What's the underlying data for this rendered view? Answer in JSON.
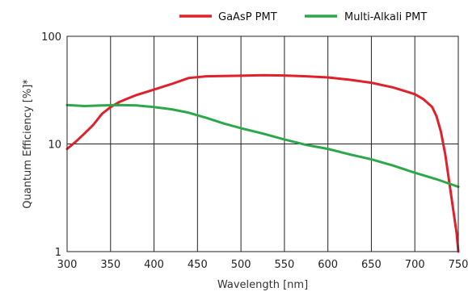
{
  "chart_data": {
    "type": "line",
    "title": "",
    "xlabel": "Wavelength [nm]",
    "ylabel": "Quantum Efficiency [%]*",
    "xlim": [
      300,
      750
    ],
    "ylim": [
      1,
      100
    ],
    "y_scale": "log",
    "grid": true,
    "legend_position": "top",
    "x_ticks": [
      300,
      350,
      400,
      450,
      500,
      550,
      600,
      650,
      700,
      750
    ],
    "y_ticks": [
      1,
      10,
      100
    ],
    "series": [
      {
        "name": "GaAsP PMT",
        "color": "#e0202a",
        "x": [
          300,
          310,
          320,
          330,
          340,
          350,
          360,
          370,
          380,
          400,
          420,
          440,
          460,
          500,
          525,
          550,
          575,
          600,
          625,
          650,
          675,
          700,
          710,
          720,
          725,
          730,
          735,
          740,
          745,
          748,
          750
        ],
        "y": [
          9,
          10.5,
          12.5,
          15,
          19,
          22,
          24.5,
          26.5,
          28.5,
          32,
          36,
          41,
          42.5,
          43,
          43.5,
          43.2,
          42.5,
          41.5,
          39.5,
          37,
          33.5,
          29,
          26,
          22,
          18,
          13,
          8,
          4.2,
          2.2,
          1.5,
          1
        ]
      },
      {
        "name": "Multi-Alkali PMT",
        "color": "#2ca84a",
        "x": [
          300,
          320,
          340,
          360,
          380,
          400,
          420,
          440,
          460,
          480,
          500,
          525,
          550,
          575,
          600,
          625,
          650,
          675,
          700,
          725,
          750
        ],
        "y": [
          23,
          22.5,
          22.8,
          23,
          22.8,
          22,
          21,
          19.5,
          17.5,
          15.5,
          14,
          12.5,
          11,
          9.8,
          9,
          8,
          7.2,
          6.3,
          5.4,
          4.7,
          4
        ]
      }
    ]
  }
}
